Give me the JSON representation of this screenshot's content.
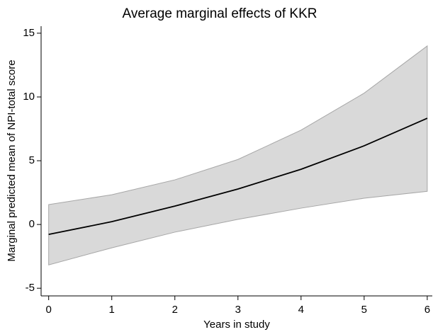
{
  "chart_data": {
    "type": "line",
    "title": "Average marginal effects of KKR",
    "x_label": "Years in study",
    "y_label": "Marginal predicted mean of NPI-total score",
    "x": [
      0,
      1,
      2,
      3,
      4,
      5,
      6
    ],
    "values": [
      -0.78,
      0.22,
      1.44,
      2.78,
      4.33,
      6.17,
      8.33
    ],
    "ci_upper": [
      1.56,
      2.33,
      3.5,
      5.1,
      7.4,
      10.3,
      14.0
    ],
    "ci_lower": [
      -3.17,
      -1.83,
      -0.6,
      0.4,
      1.28,
      2.06,
      2.6
    ],
    "color": "#000000",
    "band_color": "#d9d9d9",
    "band_edge_color": "#a6a6a6",
    "xlim": [
      -0.12,
      6.08
    ],
    "ylim": [
      -5.6,
      15.55
    ],
    "xticks": [
      0,
      1,
      2,
      3,
      4,
      5,
      6
    ],
    "yticks": [
      -5,
      0,
      5,
      10,
      15
    ],
    "grid": false
  }
}
